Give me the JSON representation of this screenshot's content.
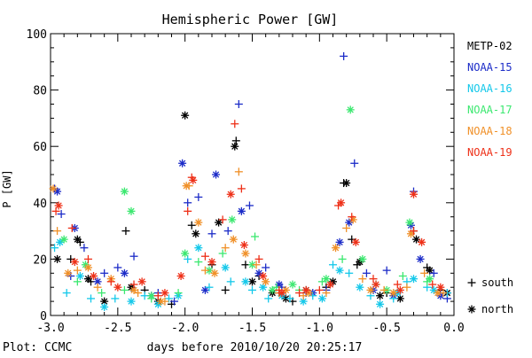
{
  "chart_data": {
    "type": "scatter",
    "title": "Hemispheric Power [GW]",
    "xlabel": "days before 2010/10/20 20:25:17",
    "ylabel": "P [GW]",
    "xlim": [
      -3.0,
      0.0
    ],
    "ylim": [
      0,
      100
    ],
    "x_ticks": [
      "-3.0",
      "-2.5",
      "-2.0",
      "-1.5",
      "-1.0",
      "-0.5",
      "0.0"
    ],
    "y_ticks": [
      "0",
      "20",
      "40",
      "60",
      "80",
      "100"
    ],
    "credit": "Plot: CCMC",
    "hemisphere_legend": [
      {
        "marker": "+",
        "label": "south"
      },
      {
        "marker": "*",
        "label": "north"
      }
    ],
    "legend_placement": "right",
    "series": [
      {
        "name": "METP-02",
        "color": "#000000",
        "south": [
          [
            -2.85,
            20
          ],
          [
            -2.78,
            26
          ],
          [
            -2.7,
            12
          ],
          [
            -2.44,
            30
          ],
          [
            -2.3,
            9
          ],
          [
            -2.1,
            4
          ],
          [
            -1.95,
            32
          ],
          [
            -1.8,
            18
          ],
          [
            -1.7,
            9
          ],
          [
            -1.62,
            62
          ],
          [
            -1.55,
            18
          ],
          [
            -1.45,
            14
          ],
          [
            -1.3,
            8
          ],
          [
            -1.2,
            5
          ],
          [
            -0.95,
            10
          ],
          [
            -0.82,
            47
          ],
          [
            -0.76,
            27
          ],
          [
            -0.72,
            18
          ],
          [
            -0.5,
            8
          ],
          [
            -0.3,
            30
          ],
          [
            -0.2,
            17
          ],
          [
            -0.1,
            9
          ]
        ],
        "north": [
          [
            -2.95,
            20
          ],
          [
            -2.8,
            27
          ],
          [
            -2.72,
            13
          ],
          [
            -2.6,
            5
          ],
          [
            -2.4,
            10
          ],
          [
            -2.2,
            5
          ],
          [
            -2.0,
            71
          ],
          [
            -1.92,
            29
          ],
          [
            -1.75,
            33
          ],
          [
            -1.63,
            60
          ],
          [
            -1.5,
            12
          ],
          [
            -1.35,
            8
          ],
          [
            -1.25,
            6
          ],
          [
            -1.1,
            9
          ],
          [
            -0.9,
            12
          ],
          [
            -0.8,
            47
          ],
          [
            -0.7,
            19
          ],
          [
            -0.55,
            7
          ],
          [
            -0.4,
            6
          ],
          [
            -0.28,
            27
          ],
          [
            -0.18,
            16
          ],
          [
            -0.05,
            8
          ]
        ]
      },
      {
        "name": "NOAA-15",
        "color": "#1c2cc8",
        "south": [
          [
            -2.97,
            45
          ],
          [
            -2.92,
            36
          ],
          [
            -2.85,
            14
          ],
          [
            -2.75,
            24
          ],
          [
            -2.6,
            15
          ],
          [
            -2.5,
            17
          ],
          [
            -2.38,
            21
          ],
          [
            -2.2,
            8
          ],
          [
            -2.08,
            5
          ],
          [
            -1.98,
            40
          ],
          [
            -1.9,
            42
          ],
          [
            -1.8,
            29
          ],
          [
            -1.68,
            30
          ],
          [
            -1.6,
            75
          ],
          [
            -1.52,
            39
          ],
          [
            -1.4,
            17
          ],
          [
            -1.28,
            10
          ],
          [
            -1.1,
            8
          ],
          [
            -0.95,
            9
          ],
          [
            -0.82,
            92
          ],
          [
            -0.74,
            54
          ],
          [
            -0.65,
            15
          ],
          [
            -0.5,
            16
          ],
          [
            -0.3,
            44
          ],
          [
            -0.15,
            15
          ],
          [
            -0.05,
            6
          ]
        ],
        "north": [
          [
            -2.95,
            44
          ],
          [
            -2.82,
            31
          ],
          [
            -2.65,
            12
          ],
          [
            -2.45,
            15
          ],
          [
            -2.25,
            7
          ],
          [
            -2.02,
            54
          ],
          [
            -1.85,
            9
          ],
          [
            -1.77,
            50
          ],
          [
            -1.58,
            37
          ],
          [
            -1.45,
            15
          ],
          [
            -1.3,
            11
          ],
          [
            -1.05,
            8
          ],
          [
            -0.85,
            26
          ],
          [
            -0.78,
            33
          ],
          [
            -0.6,
            9
          ],
          [
            -0.45,
            7
          ],
          [
            -0.32,
            32
          ],
          [
            -0.25,
            20
          ],
          [
            -0.1,
            7
          ]
        ]
      },
      {
        "name": "NOAA-16",
        "color": "#14c8ea",
        "south": [
          [
            -2.97,
            24
          ],
          [
            -2.88,
            8
          ],
          [
            -2.7,
            6
          ],
          [
            -2.52,
            6
          ],
          [
            -2.3,
            7
          ],
          [
            -2.12,
            6
          ],
          [
            -1.98,
            20
          ],
          [
            -1.82,
            10
          ],
          [
            -1.66,
            12
          ],
          [
            -1.5,
            9
          ],
          [
            -1.38,
            6
          ],
          [
            -1.22,
            6
          ],
          [
            -1.05,
            7
          ],
          [
            -0.9,
            18
          ],
          [
            -0.78,
            15
          ],
          [
            -0.62,
            7
          ],
          [
            -0.45,
            6
          ],
          [
            -0.35,
            12
          ],
          [
            -0.2,
            10
          ],
          [
            -0.05,
            8
          ]
        ],
        "north": [
          [
            -2.93,
            26
          ],
          [
            -2.78,
            14
          ],
          [
            -2.6,
            3
          ],
          [
            -2.4,
            5
          ],
          [
            -2.2,
            4
          ],
          [
            -2.05,
            7
          ],
          [
            -1.9,
            24
          ],
          [
            -1.7,
            17
          ],
          [
            -1.55,
            12
          ],
          [
            -1.42,
            10
          ],
          [
            -1.28,
            7
          ],
          [
            -1.12,
            5
          ],
          [
            -0.98,
            6
          ],
          [
            -0.85,
            16
          ],
          [
            -0.7,
            10
          ],
          [
            -0.55,
            4
          ],
          [
            -0.42,
            8
          ],
          [
            -0.3,
            13
          ],
          [
            -0.15,
            9
          ]
        ]
      },
      {
        "name": "NOAA-17",
        "color": "#3ce870",
        "south": [
          [
            -2.8,
            12
          ],
          [
            -2.62,
            8
          ],
          [
            -2.45,
            9
          ],
          [
            -2.25,
            6
          ],
          [
            -2.05,
            8
          ],
          [
            -1.9,
            19
          ],
          [
            -1.72,
            22
          ],
          [
            -1.48,
            28
          ],
          [
            -1.32,
            10
          ],
          [
            -1.15,
            9
          ],
          [
            -0.98,
            12
          ],
          [
            -0.83,
            20
          ],
          [
            -0.58,
            11
          ],
          [
            -0.38,
            14
          ],
          [
            -0.2,
            12
          ]
        ],
        "north": [
          [
            -2.9,
            27
          ],
          [
            -2.74,
            18
          ],
          [
            -2.45,
            44
          ],
          [
            -2.4,
            37
          ],
          [
            -2.25,
            7
          ],
          [
            -2.0,
            22
          ],
          [
            -1.82,
            16
          ],
          [
            -1.65,
            34
          ],
          [
            -1.5,
            18
          ],
          [
            -1.35,
            9
          ],
          [
            -1.2,
            11
          ],
          [
            -0.95,
            13
          ],
          [
            -0.77,
            73
          ],
          [
            -0.68,
            20
          ],
          [
            -0.5,
            9
          ],
          [
            -0.33,
            33
          ],
          [
            -0.18,
            13
          ]
        ]
      },
      {
        "name": "NOAA-18",
        "color": "#f09028",
        "south": [
          [
            -2.95,
            30
          ],
          [
            -2.8,
            16
          ],
          [
            -2.65,
            10
          ],
          [
            -2.35,
            8
          ],
          [
            -2.15,
            5
          ],
          [
            -1.97,
            46
          ],
          [
            -1.85,
            16
          ],
          [
            -1.7,
            24
          ],
          [
            -1.6,
            51
          ],
          [
            -1.47,
            18
          ],
          [
            -1.3,
            8
          ],
          [
            -1.12,
            7
          ],
          [
            -0.95,
            8
          ],
          [
            -0.8,
            31
          ],
          [
            -0.68,
            13
          ],
          [
            -0.52,
            9
          ],
          [
            -0.35,
            10
          ],
          [
            -0.22,
            15
          ],
          [
            -0.08,
            8
          ]
        ],
        "north": [
          [
            -2.98,
            45
          ],
          [
            -2.87,
            15
          ],
          [
            -2.72,
            17
          ],
          [
            -2.55,
            13
          ],
          [
            -2.38,
            9
          ],
          [
            -2.18,
            5
          ],
          [
            -1.99,
            46
          ],
          [
            -1.9,
            33
          ],
          [
            -1.78,
            15
          ],
          [
            -1.64,
            27
          ],
          [
            -1.55,
            22
          ],
          [
            -1.4,
            12
          ],
          [
            -1.25,
            9
          ],
          [
            -1.08,
            8
          ],
          [
            -0.88,
            24
          ],
          [
            -0.75,
            34
          ],
          [
            -0.62,
            9
          ],
          [
            -0.45,
            8
          ],
          [
            -0.32,
            29
          ],
          [
            -0.12,
            8
          ]
        ]
      },
      {
        "name": "NOAA-19",
        "color": "#ee3018",
        "south": [
          [
            -2.96,
            37
          ],
          [
            -2.84,
            31
          ],
          [
            -2.72,
            20
          ],
          [
            -2.55,
            12
          ],
          [
            -2.38,
            11
          ],
          [
            -2.2,
            7
          ],
          [
            -1.98,
            37
          ],
          [
            -1.95,
            49
          ],
          [
            -1.85,
            21
          ],
          [
            -1.72,
            34
          ],
          [
            -1.63,
            68
          ],
          [
            -1.58,
            45
          ],
          [
            -1.45,
            20
          ],
          [
            -1.3,
            9
          ],
          [
            -1.15,
            8
          ],
          [
            -1.0,
            9
          ],
          [
            -0.86,
            39
          ],
          [
            -0.76,
            35
          ],
          [
            -0.6,
            13
          ],
          [
            -0.42,
            11
          ],
          [
            -0.3,
            30
          ],
          [
            -0.16,
            11
          ]
        ],
        "north": [
          [
            -2.94,
            39
          ],
          [
            -2.82,
            19
          ],
          [
            -2.68,
            14
          ],
          [
            -2.5,
            10
          ],
          [
            -2.32,
            12
          ],
          [
            -2.15,
            8
          ],
          [
            -2.03,
            14
          ],
          [
            -1.94,
            48
          ],
          [
            -1.8,
            19
          ],
          [
            -1.66,
            43
          ],
          [
            -1.56,
            25
          ],
          [
            -1.42,
            14
          ],
          [
            -1.28,
            8
          ],
          [
            -1.1,
            9
          ],
          [
            -0.92,
            11
          ],
          [
            -0.84,
            40
          ],
          [
            -0.73,
            26
          ],
          [
            -0.58,
            11
          ],
          [
            -0.4,
            9
          ],
          [
            -0.3,
            43
          ],
          [
            -0.24,
            26
          ],
          [
            -0.1,
            10
          ]
        ]
      }
    ]
  }
}
